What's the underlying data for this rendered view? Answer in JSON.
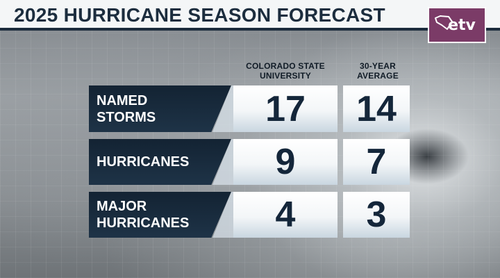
{
  "title": "2025 HURRICANE SEASON FORECAST",
  "logo": {
    "text": "etv",
    "icon": "south-carolina-state-icon"
  },
  "columns": {
    "csu": "COLORADO STATE UNIVERSITY",
    "average": "30-YEAR AVERAGE"
  },
  "rows": [
    {
      "label_line1": "NAMED",
      "label_line2": "STORMS",
      "csu": "17",
      "average": "14"
    },
    {
      "label_line1": "HURRICANES",
      "label_line2": "",
      "csu": "9",
      "average": "7"
    },
    {
      "label_line1": "MAJOR",
      "label_line2": "HURRICANES",
      "csu": "4",
      "average": "3"
    }
  ]
}
